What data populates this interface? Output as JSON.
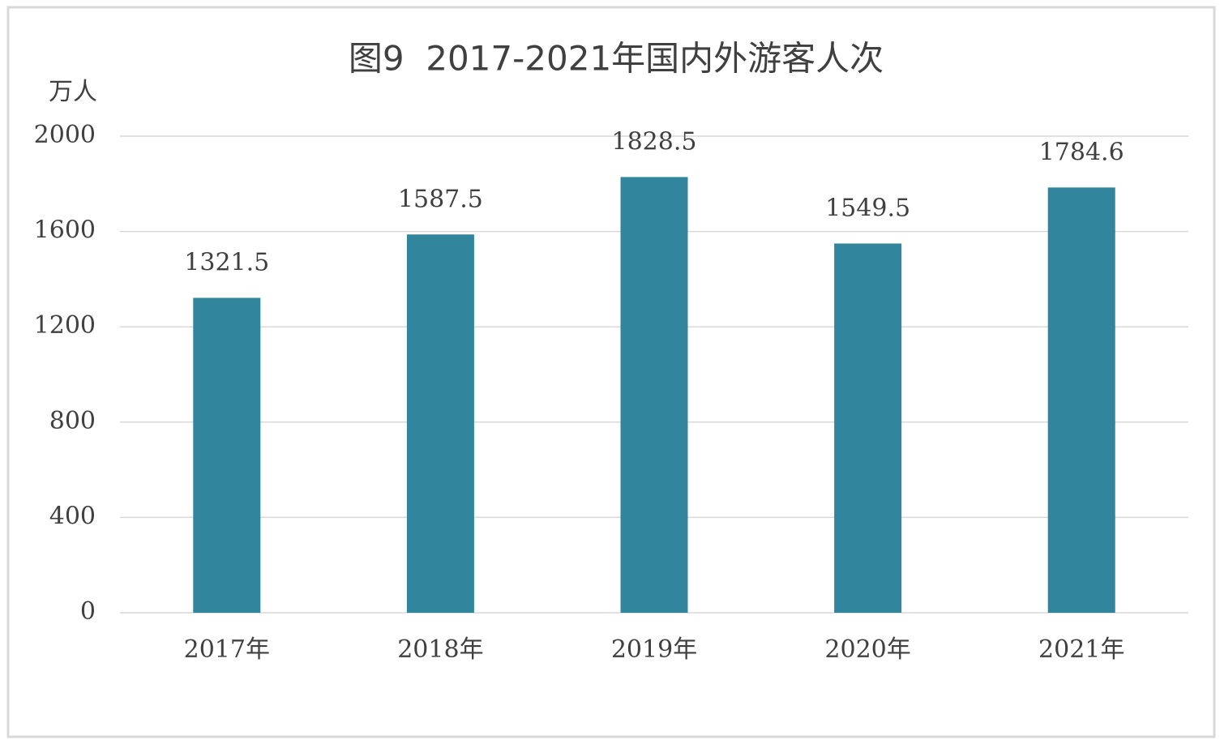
{
  "chart_data": {
    "type": "bar",
    "title": "图9  2017-2021年国内外游客人次",
    "ylabel": "万人",
    "categories": [
      "2017年",
      "2018年",
      "2019年",
      "2020年",
      "2021年"
    ],
    "values": [
      1321.5,
      1587.5,
      1828.5,
      1549.5,
      1784.6
    ],
    "color": "#31859c",
    "ylim": [
      0,
      2000
    ],
    "yticks": [
      0,
      400,
      800,
      1200,
      1600,
      2000
    ],
    "grid": true
  }
}
